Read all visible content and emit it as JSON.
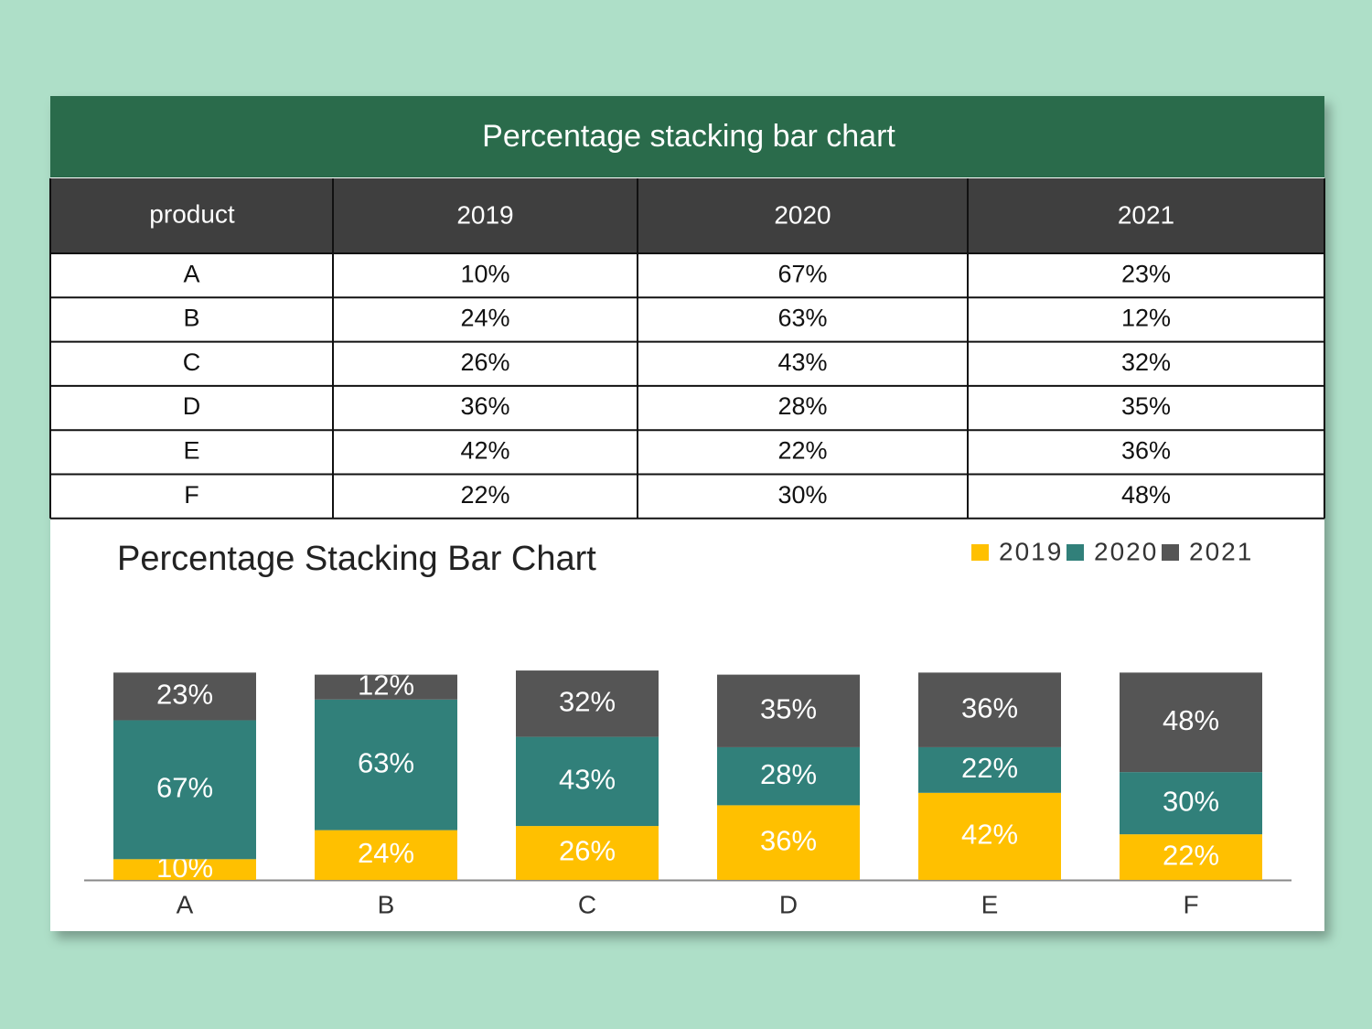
{
  "table": {
    "title": "Percentage stacking bar chart",
    "header": "product"
  },
  "chart_data": {
    "type": "bar",
    "stacked": true,
    "title": "Percentage Stacking Bar Chart",
    "categories": [
      "A",
      "B",
      "C",
      "D",
      "E",
      "F"
    ],
    "series": [
      {
        "name": "2019",
        "color": "#ffc000",
        "values": [
          10,
          24,
          26,
          36,
          42,
          22
        ],
        "value_labels": [
          "10%",
          "24%",
          "26%",
          "36%",
          "42%",
          "22%"
        ]
      },
      {
        "name": "2020",
        "color": "#31807a",
        "values": [
          67,
          63,
          43,
          28,
          22,
          30
        ],
        "value_labels": [
          "67%",
          "63%",
          "43%",
          "28%",
          "22%",
          "30%"
        ]
      },
      {
        "name": "2021",
        "color": "#555555",
        "values": [
          23,
          12,
          32,
          35,
          36,
          48
        ],
        "value_labels": [
          "23%",
          "12%",
          "32%",
          "35%",
          "36%",
          "48%"
        ]
      }
    ],
    "ylim": [
      0,
      120
    ],
    "legend": "top-right"
  }
}
